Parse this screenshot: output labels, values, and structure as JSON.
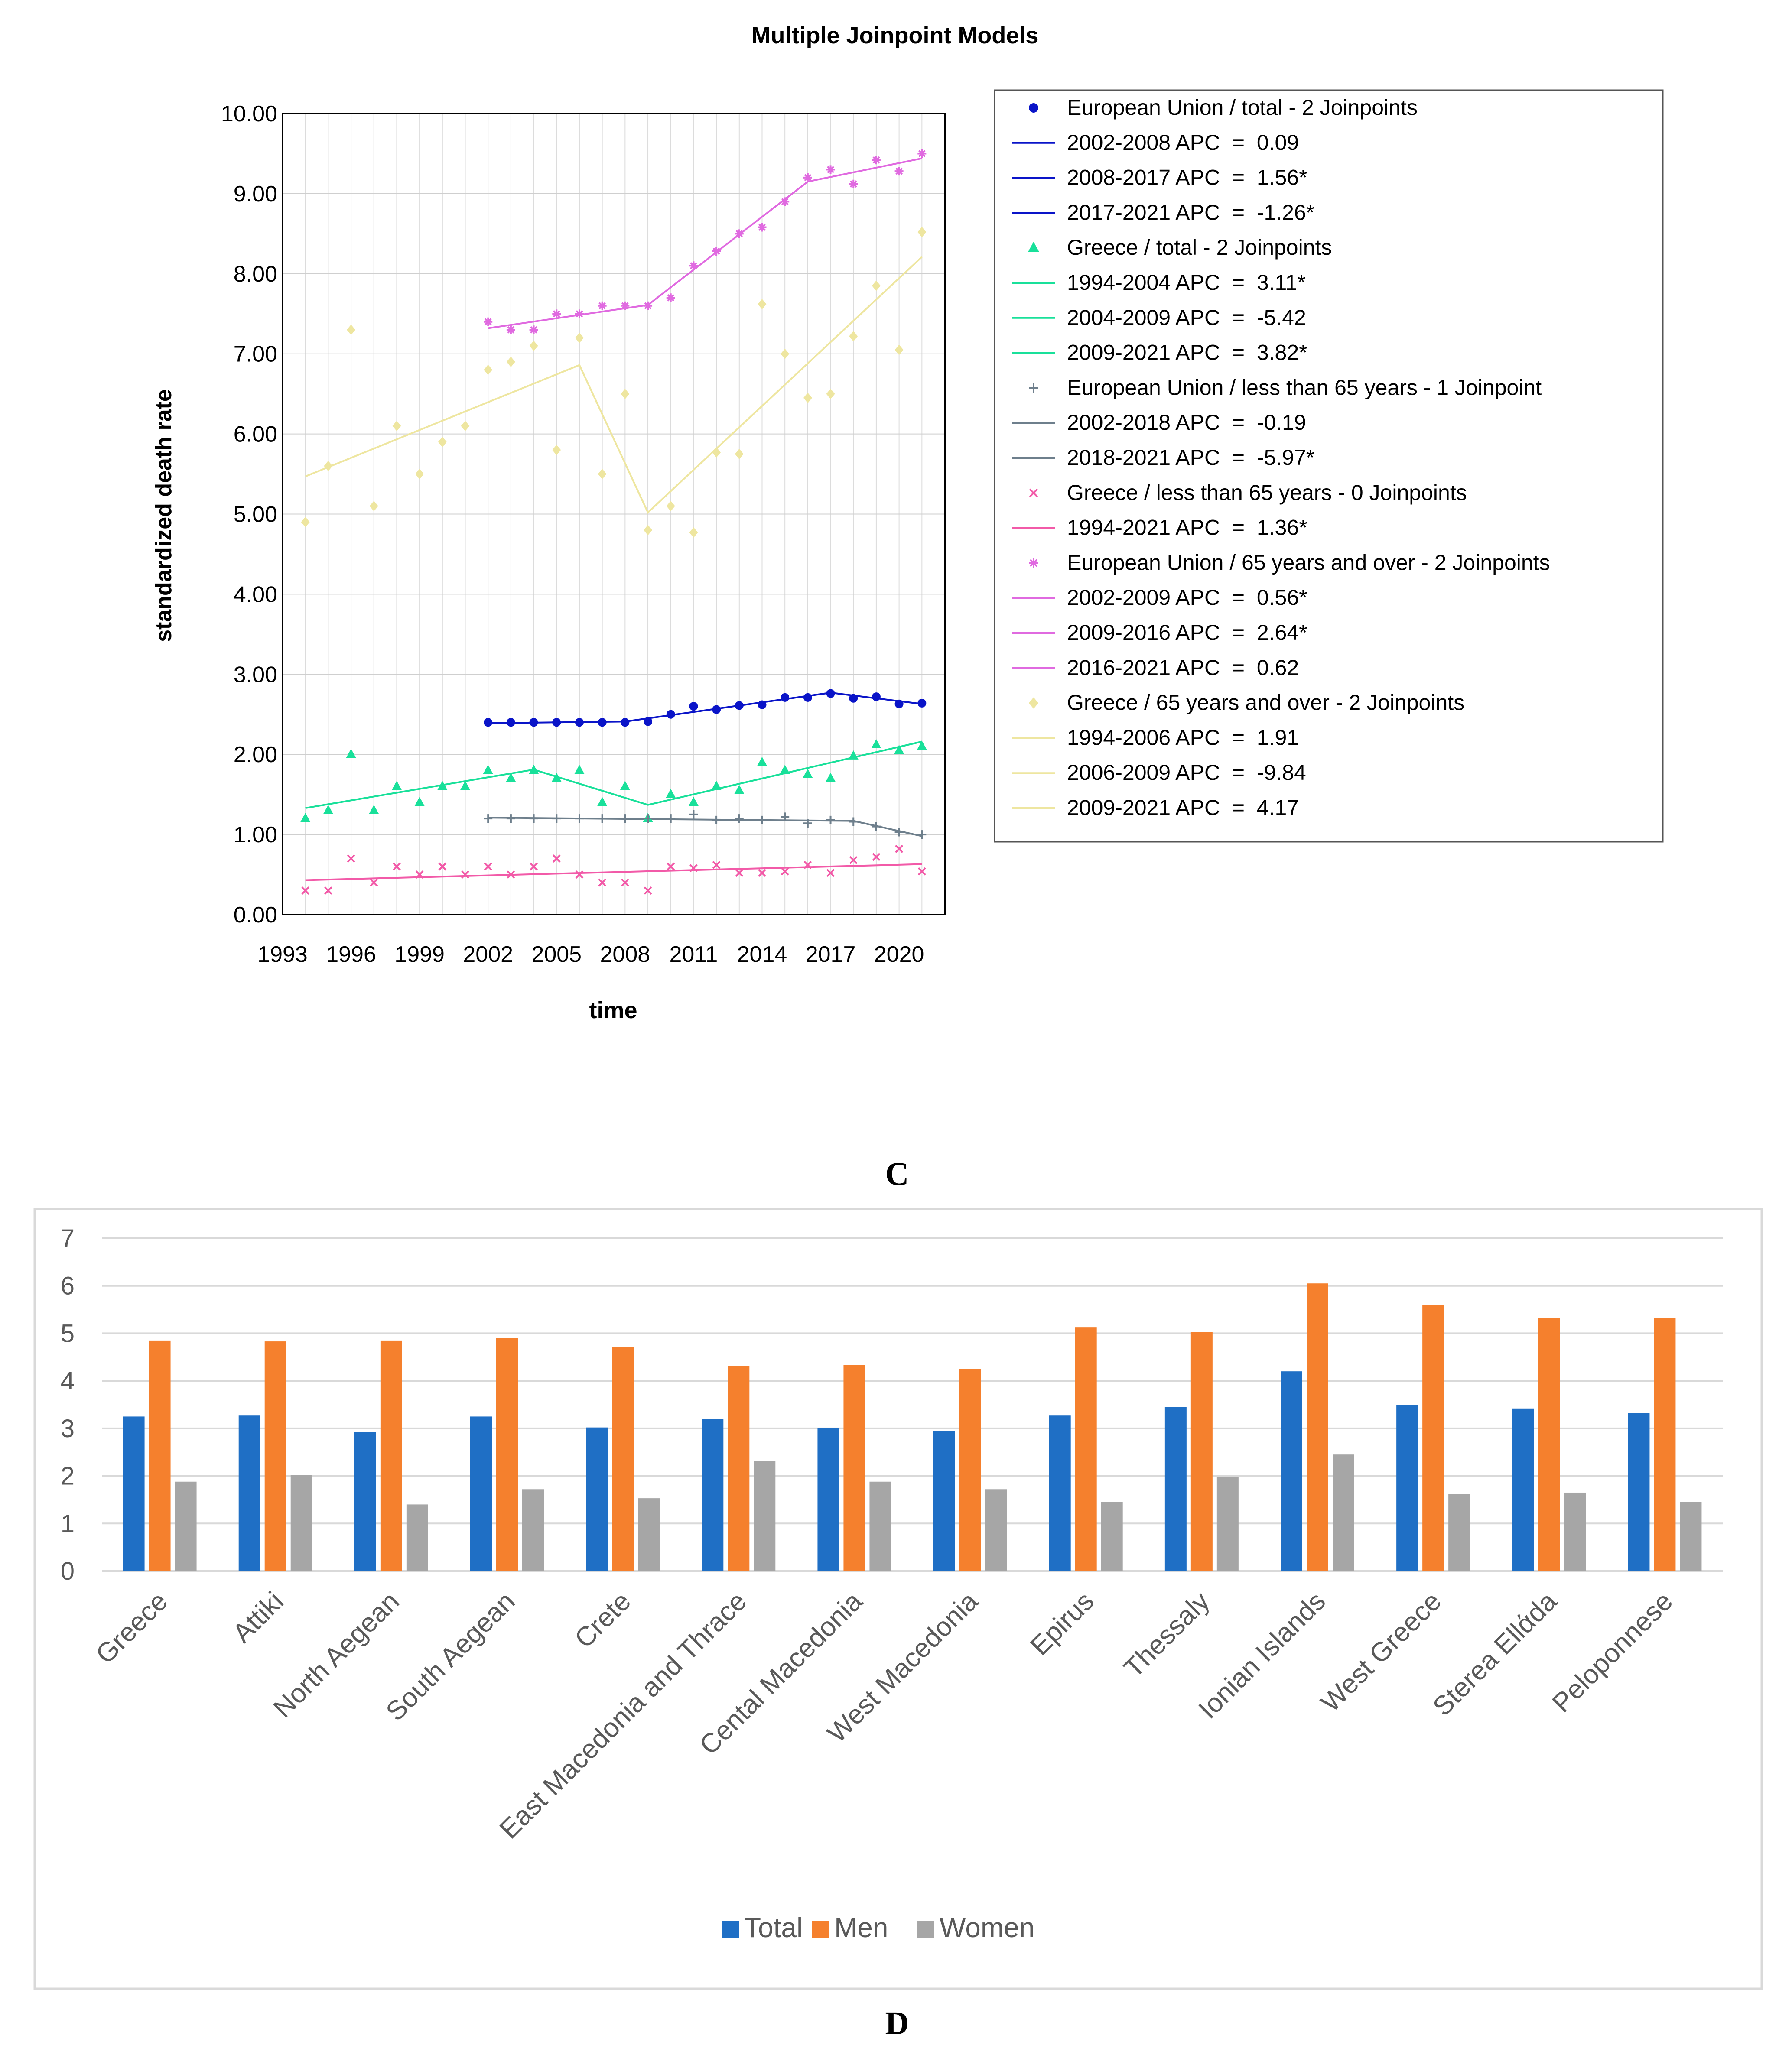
{
  "panel_c_label": "C",
  "panel_d_label": "D",
  "chart_data": [
    {
      "type": "line",
      "title": "Multiple Joinpoint Models",
      "xlabel": "time",
      "ylabel": "standardized death rate",
      "xlim": [
        1993,
        2022
      ],
      "ylim": [
        0,
        10
      ],
      "xticks": [
        "1993",
        "1996",
        "1999",
        "2002",
        "2005",
        "2008",
        "2011",
        "2014",
        "2017",
        "2020"
      ],
      "yticks": [
        "0.00",
        "1.00",
        "2.00",
        "3.00",
        "4.00",
        "5.00",
        "6.00",
        "7.00",
        "8.00",
        "9.00",
        "10.00"
      ],
      "grid": true,
      "legend_position": "right",
      "series": [
        {
          "name": "European Union / total",
          "legend": "European Union / total - 2 Joinpoints",
          "color": "#0a14c8",
          "marker": "circle",
          "x": [
            2002,
            2003,
            2004,
            2005,
            2006,
            2007,
            2008,
            2009,
            2010,
            2011,
            2012,
            2013,
            2014,
            2015,
            2016,
            2017,
            2018,
            2019,
            2020,
            2021
          ],
          "y": [
            2.4,
            2.4,
            2.4,
            2.4,
            2.4,
            2.4,
            2.4,
            2.41,
            2.5,
            2.6,
            2.56,
            2.61,
            2.62,
            2.71,
            2.71,
            2.76,
            2.7,
            2.72,
            2.63,
            2.64
          ],
          "fit": {
            "x": [
              2002,
              2008,
              2017,
              2021
            ],
            "y": [
              2.39,
              2.41,
              2.77,
              2.63
            ]
          },
          "segments": [
            "2002-2008 APC  =  0.09",
            "2008-2017 APC  =  1.56*",
            "2017-2021 APC  =  -1.26*"
          ]
        },
        {
          "name": "Greece / total",
          "legend": "Greece / total - 2 Joinpoints",
          "color": "#19e09a",
          "marker": "triangle",
          "x": [
            1994,
            1995,
            1996,
            1997,
            1998,
            1999,
            2000,
            2001,
            2002,
            2003,
            2004,
            2005,
            2006,
            2007,
            2008,
            2009,
            2010,
            2011,
            2012,
            2013,
            2014,
            2015,
            2016,
            2017,
            2018,
            2019,
            2020,
            2021
          ],
          "y": [
            1.2,
            1.3,
            2.0,
            1.3,
            1.6,
            1.4,
            1.6,
            1.6,
            1.8,
            1.7,
            1.8,
            1.7,
            1.8,
            1.4,
            1.6,
            1.2,
            1.5,
            1.4,
            1.6,
            1.55,
            1.9,
            1.8,
            1.75,
            1.7,
            1.98,
            2.12,
            2.05,
            2.1
          ],
          "fit": {
            "x": [
              1994,
              2004,
              2009,
              2021
            ],
            "y": [
              1.33,
              1.81,
              1.37,
              2.16
            ]
          },
          "segments": [
            "1994-2004 APC  =  3.11*",
            "2004-2009 APC  =  -5.42",
            "2009-2021 APC  =  3.82*"
          ]
        },
        {
          "name": "European Union / less than 65 years",
          "legend": "European Union / less than 65 years - 1 Joinpoint",
          "color": "#6e7f8c",
          "marker": "plus",
          "x": [
            2002,
            2003,
            2004,
            2005,
            2006,
            2007,
            2008,
            2009,
            2010,
            2011,
            2012,
            2013,
            2014,
            2015,
            2016,
            2017,
            2018,
            2019,
            2020,
            2021
          ],
          "y": [
            1.2,
            1.2,
            1.2,
            1.2,
            1.2,
            1.2,
            1.2,
            1.2,
            1.2,
            1.25,
            1.18,
            1.2,
            1.18,
            1.22,
            1.14,
            1.18,
            1.16,
            1.1,
            1.03,
            1.0
          ],
          "fit": {
            "x": [
              2002,
              2018,
              2021
            ],
            "y": [
              1.21,
              1.17,
              0.98
            ]
          },
          "segments": [
            "2002-2018 APC  =  -0.19",
            "2018-2021 APC  =  -5.97*"
          ]
        },
        {
          "name": "Greece / less than 65 years",
          "legend": "Greece / less than 65 years - 0 Joinpoints",
          "color": "#f25aa8",
          "marker": "x",
          "x": [
            1994,
            1995,
            1996,
            1997,
            1998,
            1999,
            2000,
            2001,
            2002,
            2003,
            2004,
            2005,
            2006,
            2007,
            2008,
            2009,
            2010,
            2011,
            2012,
            2013,
            2014,
            2015,
            2016,
            2017,
            2018,
            2019,
            2020,
            2021
          ],
          "y": [
            0.3,
            0.3,
            0.7,
            0.4,
            0.6,
            0.5,
            0.6,
            0.5,
            0.6,
            0.5,
            0.6,
            0.7,
            0.5,
            0.4,
            0.4,
            0.3,
            0.6,
            0.58,
            0.62,
            0.52,
            0.52,
            0.54,
            0.62,
            0.52,
            0.68,
            0.72,
            0.82,
            0.54
          ],
          "fit": {
            "x": [
              1994,
              2021
            ],
            "y": [
              0.43,
              0.63
            ]
          },
          "segments": [
            "1994-2021 APC  =  1.36*"
          ]
        },
        {
          "name": "European Union / 65 years and over",
          "legend": "European Union / 65 years and over - 2 Joinpoints",
          "color": "#e06ae0",
          "marker": "star",
          "x": [
            2002,
            2003,
            2004,
            2005,
            2006,
            2007,
            2008,
            2009,
            2010,
            2011,
            2012,
            2013,
            2014,
            2015,
            2016,
            2017,
            2018,
            2019,
            2020,
            2021
          ],
          "y": [
            7.4,
            7.3,
            7.3,
            7.5,
            7.5,
            7.6,
            7.6,
            7.6,
            7.7,
            8.1,
            8.28,
            8.5,
            8.58,
            8.9,
            9.2,
            9.3,
            9.12,
            9.42,
            9.28,
            9.5
          ],
          "fit": {
            "x": [
              2002,
              2009,
              2016,
              2021
            ],
            "y": [
              7.32,
              7.61,
              9.15,
              9.44
            ]
          },
          "segments": [
            "2002-2009 APC  =  0.56*",
            "2009-2016 APC  =  2.64*",
            "2016-2021 APC  =  0.62"
          ]
        },
        {
          "name": "Greece / 65 years and over",
          "legend": "Greece / 65 years and over - 2 Joinpoints",
          "color": "#eee6a0",
          "marker": "diamond",
          "x": [
            1994,
            1995,
            1996,
            1997,
            1998,
            1999,
            2000,
            2001,
            2002,
            2003,
            2004,
            2005,
            2006,
            2007,
            2008,
            2009,
            2010,
            2011,
            2012,
            2013,
            2014,
            2015,
            2016,
            2017,
            2018,
            2019,
            2020,
            2021
          ],
          "y": [
            4.9,
            5.6,
            7.3,
            5.1,
            6.1,
            5.5,
            5.9,
            6.1,
            6.8,
            6.9,
            7.1,
            5.8,
            7.2,
            5.5,
            6.5,
            4.8,
            5.1,
            4.77,
            5.77,
            5.75,
            7.62,
            7.0,
            6.45,
            6.5,
            7.22,
            7.85,
            7.05,
            8.52
          ],
          "fit": {
            "x": [
              1994,
              2006,
              2009,
              2021
            ],
            "y": [
              5.47,
              6.86,
              5.02,
              8.21
            ]
          },
          "segments": [
            "1994-2006 APC  =  1.91",
            "2006-2009 APC  =  -9.84",
            "2009-2021 APC  =  4.17"
          ]
        }
      ]
    },
    {
      "type": "bar",
      "title": "",
      "xlabel": "",
      "ylabel": "",
      "ylim": [
        0,
        7
      ],
      "yticks": [
        "0",
        "1",
        "2",
        "3",
        "4",
        "5",
        "6",
        "7"
      ],
      "grid": true,
      "legend_position": "bottom",
      "categories": [
        "Greece",
        "Attiki",
        "North Aegean",
        "South Aegean",
        "Crete",
        "East Macedonia and Thrace",
        "Cental Macedonia",
        "West Macedonia",
        "Epirus",
        "Thessaly",
        "Ionian Islands",
        "West Greece",
        "Sterea Ellάda",
        "Peloponnese"
      ],
      "series": [
        {
          "name": "Total",
          "color": "#1f6fc5",
          "values": [
            3.25,
            3.27,
            2.92,
            3.25,
            3.02,
            3.2,
            3.0,
            2.95,
            3.27,
            3.45,
            4.2,
            3.5,
            3.42,
            3.32
          ]
        },
        {
          "name": "Men",
          "color": "#f5802d",
          "values": [
            4.85,
            4.83,
            4.85,
            4.9,
            4.72,
            4.32,
            4.33,
            4.25,
            5.13,
            5.03,
            6.05,
            5.6,
            5.33,
            5.33
          ]
        },
        {
          "name": "Women",
          "color": "#a6a6a6",
          "values": [
            1.88,
            2.02,
            1.4,
            1.72,
            1.53,
            2.32,
            1.88,
            1.72,
            1.45,
            1.98,
            2.45,
            1.62,
            1.65,
            1.45
          ]
        }
      ]
    }
  ]
}
